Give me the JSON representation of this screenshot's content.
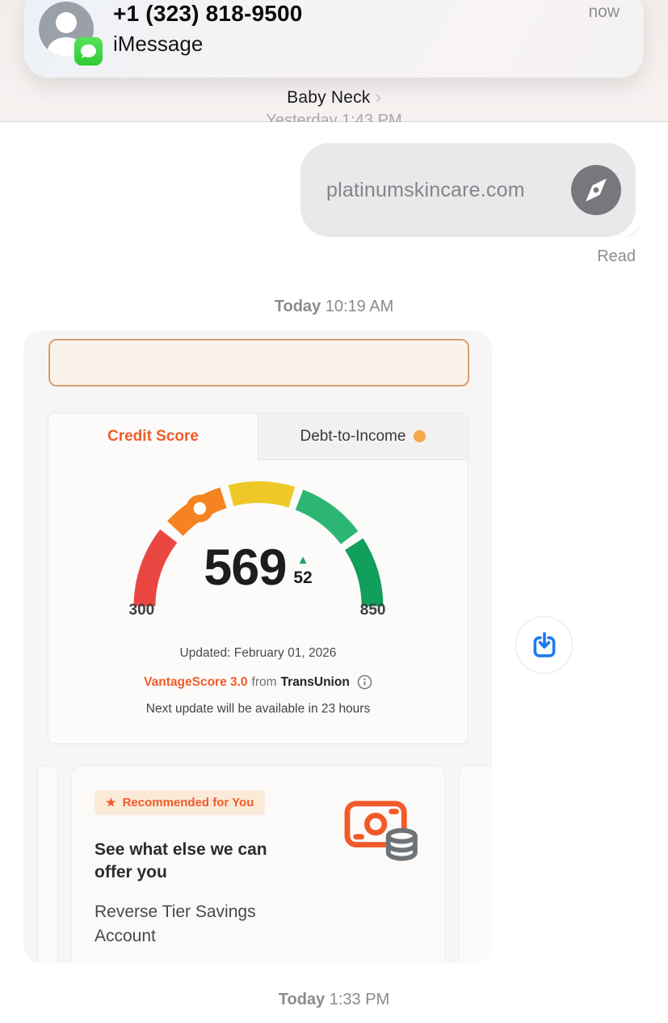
{
  "notification": {
    "title": "+1 (323) 818-9500",
    "subtitle": "iMessage",
    "time": "now"
  },
  "header": {
    "contact_name": "Baby Neck",
    "chevron": "›"
  },
  "conversation": {
    "clipped_timestamp": "Yesterday 1:43 PM",
    "sent_bubble": {
      "text": "platinumskincare.com"
    },
    "read_receipt": "Read",
    "timestamp_morning": {
      "day": "Today",
      "time": "10:19 AM"
    },
    "timestamp_afternoon": {
      "day": "Today",
      "time": "1:33 PM"
    }
  },
  "credit_widget": {
    "tabs": [
      {
        "label": "Credit Score",
        "active": true
      },
      {
        "label": "Debt-to-Income",
        "active": false,
        "dot_color": "#f2a84b"
      }
    ],
    "gauge": {
      "score": "569",
      "delta": "52",
      "delta_direction": "up",
      "min_label": "300",
      "max_label": "850",
      "marker": {
        "angle": 121,
        "color": "#f5831f"
      },
      "segments": [
        {
          "from": 180,
          "to": 142,
          "color": "#ea4743"
        },
        {
          "from": 137,
          "to": 108,
          "color": "#f5831f"
        },
        {
          "from": 104,
          "to": 73,
          "color": "#eec827"
        },
        {
          "from": 69,
          "to": 37,
          "color": "#2cb673"
        },
        {
          "from": 33,
          "to": 0,
          "color": "#129e5b"
        }
      ]
    },
    "updated": "Updated: February 01, 2026",
    "provider": {
      "product": "VantageScore 3.0",
      "connector": "from",
      "bureau": "TransUnion"
    },
    "next_update": "Next update will be available in 23 hours",
    "recommendation": {
      "badge": "Recommended for You",
      "star": "★",
      "headline": "See what else we can offer you",
      "product": "Reverse Tier Savings Account"
    }
  },
  "colors": {
    "accent_orange": "#f15b29",
    "download_blue": "#1b7af2",
    "delta_green": "#1ea264",
    "imessage_green": "#2ecc33"
  },
  "chart_data": {
    "type": "gauge",
    "title": "Credit Score",
    "value": 569,
    "delta": 52,
    "range": [
      300,
      850
    ],
    "bands": [
      "red",
      "orange",
      "yellow",
      "light-green",
      "dark-green"
    ]
  }
}
